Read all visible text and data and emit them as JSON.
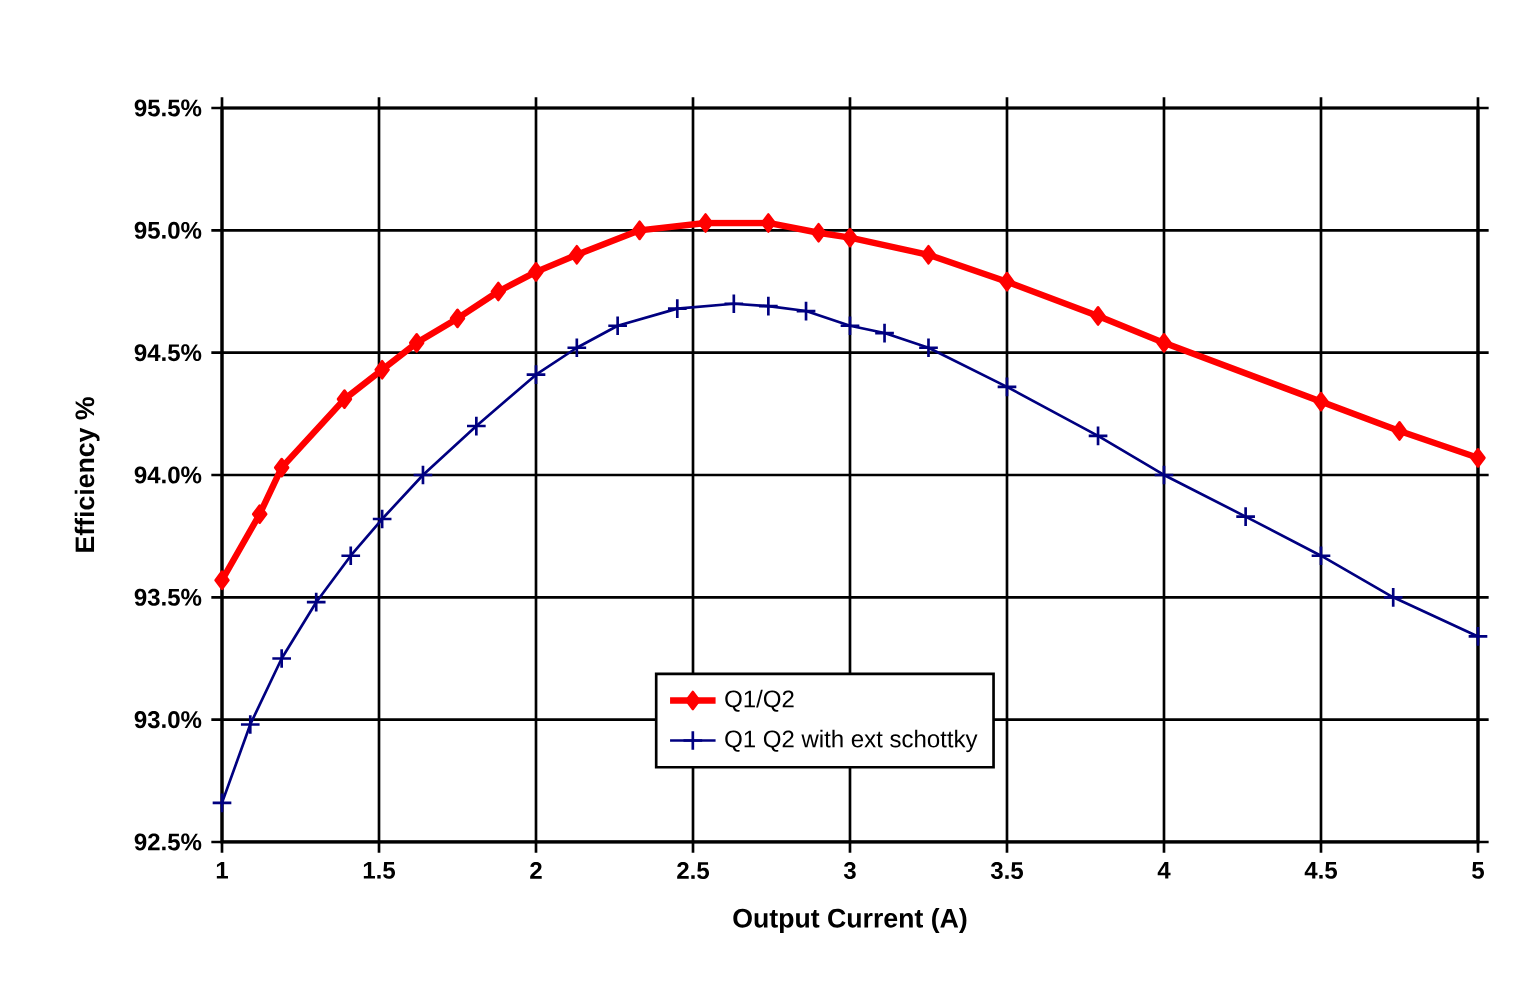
{
  "chart_data": {
    "type": "line",
    "xlabel": "Output Current (A)",
    "ylabel": "Efficiency %",
    "xlim": [
      1,
      5
    ],
    "ylim": [
      92.5,
      95.5
    ],
    "xticks": [
      1,
      1.5,
      2,
      2.5,
      3,
      3.5,
      4,
      4.5,
      5
    ],
    "yticks": [
      {
        "value": 92.5,
        "label": "92.5%"
      },
      {
        "value": 93.0,
        "label": "93.0%"
      },
      {
        "value": 93.5,
        "label": "93.5%"
      },
      {
        "value": 94.0,
        "label": "94.0%"
      },
      {
        "value": 94.5,
        "label": "94.5%"
      },
      {
        "value": 95.0,
        "label": "95.0%"
      },
      {
        "value": 95.5,
        "label": "95.5%"
      }
    ],
    "grid": true,
    "legend": "bottom",
    "series": [
      {
        "name": "Q1/Q2",
        "color": "#ff0000",
        "marker": "diamond",
        "x": [
          1,
          1.12,
          1.19,
          1.39,
          1.51,
          1.62,
          1.75,
          1.88,
          2.0,
          2.13,
          2.33,
          2.54,
          2.74,
          2.9,
          3.0,
          3.25,
          3.5,
          3.79,
          4.0,
          4.5,
          4.75,
          5.0
        ],
        "values": [
          93.57,
          93.84,
          94.03,
          94.31,
          94.43,
          94.54,
          94.64,
          94.75,
          94.83,
          94.9,
          95.0,
          95.03,
          95.03,
          94.99,
          94.97,
          94.9,
          94.79,
          94.65,
          94.54,
          94.3,
          94.18,
          94.07
        ]
      },
      {
        "name": "Q1 Q2 with ext schottky",
        "color": "#000080",
        "marker": "cross",
        "x": [
          1,
          1.09,
          1.19,
          1.3,
          1.41,
          1.51,
          1.64,
          1.81,
          2.0,
          2.13,
          2.26,
          2.45,
          2.63,
          2.74,
          2.86,
          3.0,
          3.11,
          3.25,
          3.5,
          3.79,
          4.0,
          4.26,
          4.5,
          4.73,
          5.0
        ],
        "values": [
          92.66,
          92.98,
          93.25,
          93.48,
          93.67,
          93.82,
          94.0,
          94.2,
          94.41,
          94.52,
          94.61,
          94.68,
          94.7,
          94.69,
          94.67,
          94.61,
          94.58,
          94.52,
          94.36,
          94.16,
          94.0,
          93.83,
          93.67,
          93.5,
          93.34
        ]
      }
    ]
  }
}
